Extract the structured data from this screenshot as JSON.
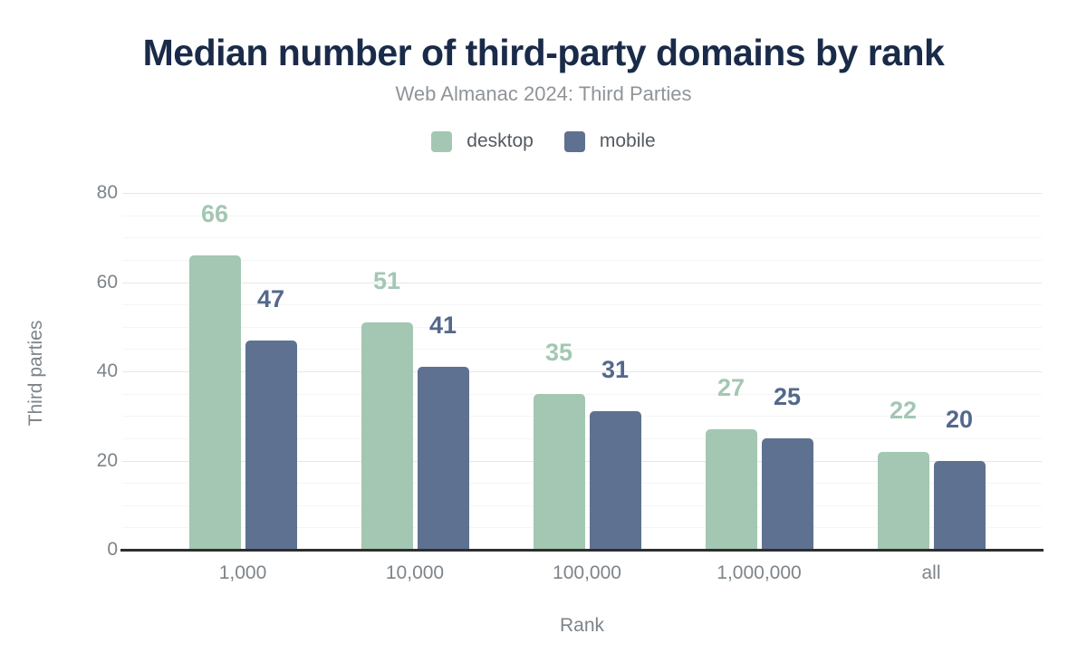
{
  "chart_data": {
    "type": "bar",
    "title": "Median number of third-party domains by rank",
    "subtitle": "Web Almanac 2024: Third Parties",
    "xlabel": "Rank",
    "ylabel": "Third parties",
    "categories": [
      "1,000",
      "10,000",
      "100,000",
      "1,000,000",
      "all"
    ],
    "series": [
      {
        "name": "desktop",
        "color": "#a3c7b3",
        "label_color": "#a3c7b3",
        "values": [
          66,
          51,
          35,
          27,
          22
        ]
      },
      {
        "name": "mobile",
        "color": "#5f7190",
        "label_color": "#54688b",
        "values": [
          47,
          41,
          31,
          25,
          20
        ]
      }
    ],
    "ylim": [
      0,
      80
    ],
    "yticks": [
      0,
      20,
      40,
      60,
      80
    ],
    "grid": {
      "minor_step": 5,
      "major_step": 20
    },
    "legend_position": "top",
    "colors": {
      "title": "#1a2b49",
      "subtitle": "#8f9499",
      "axis_labels": "#7d848a",
      "axis_line": "#2e2e2e"
    }
  }
}
